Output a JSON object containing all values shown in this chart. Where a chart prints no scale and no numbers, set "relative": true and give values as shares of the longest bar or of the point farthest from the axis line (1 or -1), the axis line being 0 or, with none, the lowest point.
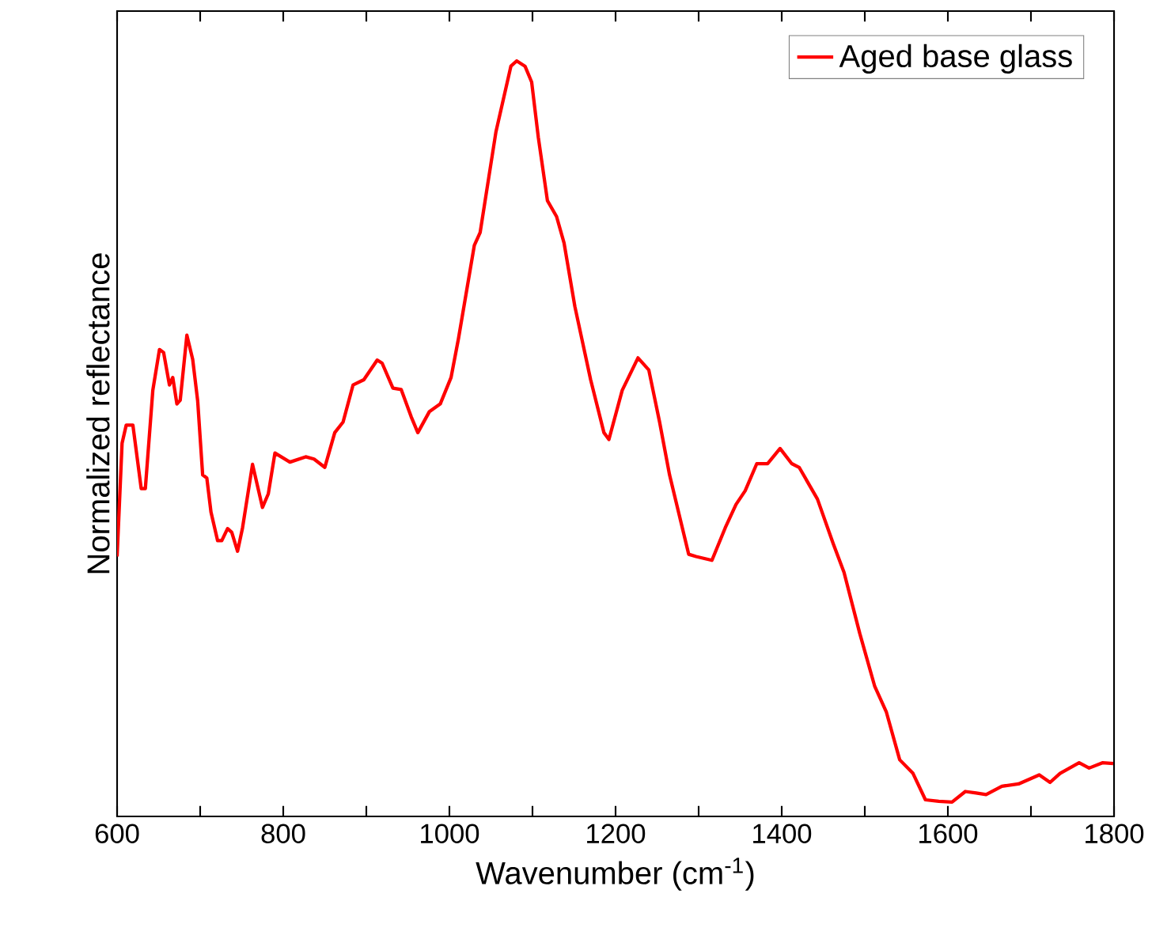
{
  "chart_data": {
    "type": "line",
    "relative": true,
    "xlabel": "Wavenumber (cm$^{-1}$)",
    "ylabel": "Normalized reflectance",
    "legend": "top right",
    "xlim": [
      600,
      1800
    ],
    "xticks": [
      600,
      {
        "value": 700,
        "label": null
      },
      800,
      {
        "value": 900,
        "label": null
      },
      1000,
      {
        "value": 1100,
        "label": null
      },
      1200,
      {
        "value": 1300,
        "label": null
      },
      1400,
      {
        "value": 1500,
        "label": null
      },
      1600,
      {
        "value": 1700,
        "label": null
      },
      1800
    ],
    "series": [
      {
        "name": "Aged base glass",
        "color": "#ff0000",
        "x": [
          600,
          606,
          611,
          619,
          629,
          634,
          643,
          651,
          656,
          663,
          667,
          672,
          676,
          684,
          691,
          697,
          703,
          708,
          713,
          721,
          726,
          733,
          738,
          745,
          751,
          763,
          775,
          782,
          790,
          808,
          827,
          837,
          850,
          862,
          872,
          884,
          897,
          913,
          919,
          932,
          942,
          954,
          962,
          976,
          989,
          1002,
          1011,
          1030,
          1037,
          1056,
          1074,
          1081,
          1091,
          1099,
          1107,
          1118,
          1129,
          1138,
          1151,
          1170,
          1186,
          1192,
          1208,
          1227,
          1240,
          1253,
          1265,
          1288,
          1297,
          1316,
          1332,
          1345,
          1356,
          1370,
          1383,
          1398,
          1412,
          1421,
          1443,
          1462,
          1475,
          1494,
          1512,
          1526,
          1542,
          1558,
          1573,
          1589,
          1605,
          1621,
          1634,
          1646,
          1665,
          1685,
          1710,
          1723,
          1735,
          1758,
          1770,
          1786,
          1799
        ],
        "values": [
          0.344,
          0.494,
          0.518,
          0.518,
          0.434,
          0.434,
          0.564,
          0.618,
          0.614,
          0.571,
          0.581,
          0.546,
          0.551,
          0.637,
          0.605,
          0.55,
          0.452,
          0.448,
          0.403,
          0.365,
          0.365,
          0.381,
          0.376,
          0.351,
          0.382,
          0.466,
          0.409,
          0.427,
          0.481,
          0.469,
          0.476,
          0.473,
          0.462,
          0.508,
          0.522,
          0.571,
          0.578,
          0.604,
          0.6,
          0.567,
          0.565,
          0.529,
          0.508,
          0.536,
          0.546,
          0.581,
          0.633,
          0.756,
          0.773,
          0.906,
          0.993,
          1.0,
          0.993,
          0.972,
          0.899,
          0.815,
          0.794,
          0.759,
          0.675,
          0.578,
          0.508,
          0.499,
          0.564,
          0.607,
          0.591,
          0.522,
          0.452,
          0.347,
          0.344,
          0.339,
          0.382,
          0.413,
          0.431,
          0.467,
          0.467,
          0.487,
          0.467,
          0.462,
          0.42,
          0.361,
          0.323,
          0.242,
          0.172,
          0.138,
          0.075,
          0.057,
          0.022,
          0.02,
          0.019,
          0.033,
          0.031,
          0.029,
          0.04,
          0.043,
          0.055,
          0.045,
          0.057,
          0.071,
          0.064,
          0.071,
          0.07
        ]
      }
    ]
  }
}
